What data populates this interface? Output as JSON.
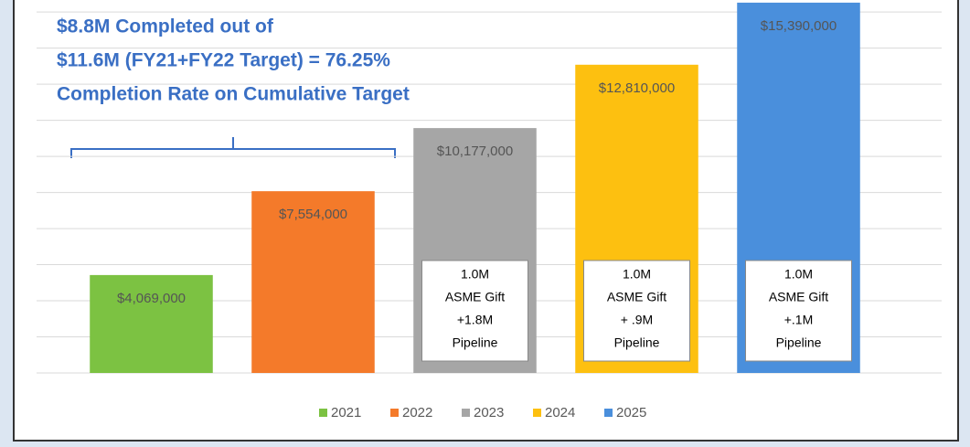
{
  "chart_data": {
    "type": "bar",
    "annotation_lines": [
      "$8.8M Completed out of",
      "$11.6M (FY21+FY22 Target)  = 76.25%",
      "Completion Rate on Cumulative Target"
    ],
    "categories": [
      "2021",
      "2022",
      "2023",
      "2024",
      "2025"
    ],
    "values": [
      4069000,
      7554000,
      10177000,
      12810000,
      15390000
    ],
    "value_labels": [
      "$4,069,000",
      "$7,554,000",
      "$10,177,000",
      "$12,810,000",
      "$15,390,000"
    ],
    "colors": [
      "#7cc242",
      "#f47a2a",
      "#a6a6a6",
      "#fdc010",
      "#4a8fdc"
    ],
    "notes": [
      null,
      null,
      [
        "1.0M",
        "ASME Gift",
        "+1.8M",
        "Pipeline"
      ],
      [
        "1.0M",
        "ASME Gift",
        "+ .9M",
        "Pipeline"
      ],
      [
        "1.0M",
        "ASME Gift",
        "+.1M",
        "Pipeline"
      ]
    ],
    "ylim": [
      0,
      15500000
    ],
    "yticks": [
      0,
      1500000,
      3000000,
      4500000,
      6000000,
      7500000,
      9000000,
      10500000,
      12000000,
      13500000,
      15000000
    ],
    "grid": true,
    "legend": "bottom"
  }
}
